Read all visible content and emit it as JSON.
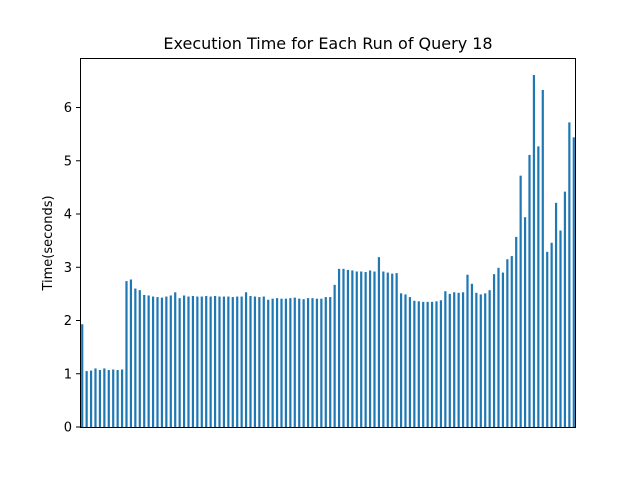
{
  "chart_data": {
    "type": "bar",
    "title": "Execution Time for Each Run of Query 18",
    "xlabel": "",
    "ylabel": "Time(seconds)",
    "ylim": [
      0,
      6.93
    ],
    "yticks": [
      "0",
      "1",
      "2",
      "3",
      "4",
      "5",
      "6"
    ],
    "bar_color": "#1f77b4",
    "grid": false,
    "values": [
      1.93,
      1.05,
      1.06,
      1.1,
      1.07,
      1.1,
      1.07,
      1.08,
      1.07,
      1.08,
      2.74,
      2.77,
      2.6,
      2.57,
      2.48,
      2.47,
      2.45,
      2.44,
      2.43,
      2.45,
      2.47,
      2.53,
      2.42,
      2.47,
      2.45,
      2.46,
      2.45,
      2.45,
      2.46,
      2.45,
      2.46,
      2.45,
      2.45,
      2.45,
      2.44,
      2.45,
      2.45,
      2.53,
      2.46,
      2.45,
      2.44,
      2.45,
      2.39,
      2.41,
      2.42,
      2.41,
      2.41,
      2.42,
      2.43,
      2.41,
      2.4,
      2.42,
      2.42,
      2.41,
      2.41,
      2.44,
      2.44,
      2.67,
      2.97,
      2.97,
      2.95,
      2.94,
      2.92,
      2.92,
      2.91,
      2.94,
      2.92,
      3.19,
      2.92,
      2.9,
      2.88,
      2.89,
      2.51,
      2.49,
      2.44,
      2.37,
      2.36,
      2.35,
      2.35,
      2.35,
      2.36,
      2.38,
      2.55,
      2.5,
      2.53,
      2.52,
      2.53,
      2.86,
      2.69,
      2.52,
      2.49,
      2.51,
      2.57,
      2.87,
      2.99,
      2.9,
      3.15,
      3.21,
      3.57,
      4.72,
      3.94,
      5.11,
      6.61,
      5.27,
      6.33,
      3.29,
      3.46,
      4.21,
      3.69,
      4.42,
      5.72,
      5.44
    ]
  }
}
